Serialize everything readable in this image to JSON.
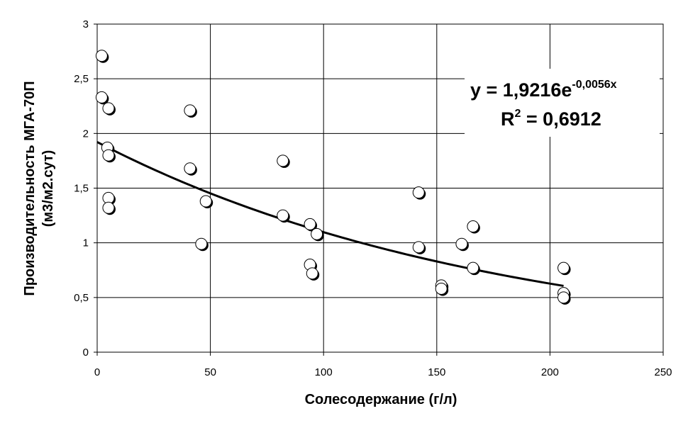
{
  "chart_data": {
    "type": "scatter",
    "xlabel": "Солесодержание (г/л)",
    "ylabel_line1": "Производительность МГА-70П",
    "ylabel_line2": "(м3/м2.сут)",
    "xlim": [
      0,
      250
    ],
    "ylim": [
      0,
      3
    ],
    "x_ticks": [
      0,
      50,
      100,
      150,
      200,
      250
    ],
    "y_ticks": [
      0,
      0.5,
      1,
      1.5,
      2,
      2.5,
      3
    ],
    "x_tick_labels": [
      "0",
      "50",
      "100",
      "150",
      "200",
      "250"
    ],
    "y_tick_labels": [
      "0",
      "0,5",
      "1",
      "1,5",
      "2",
      "2,5",
      "3"
    ],
    "grid": true,
    "legend": "none",
    "points": [
      {
        "x": 2,
        "y": 2.71
      },
      {
        "x": 2,
        "y": 2.33
      },
      {
        "x": 5,
        "y": 2.23
      },
      {
        "x": 4.5,
        "y": 1.87
      },
      {
        "x": 5,
        "y": 1.8
      },
      {
        "x": 5,
        "y": 1.41
      },
      {
        "x": 5,
        "y": 1.32
      },
      {
        "x": 41,
        "y": 2.21
      },
      {
        "x": 41,
        "y": 1.68
      },
      {
        "x": 48,
        "y": 1.38
      },
      {
        "x": 46,
        "y": 0.99
      },
      {
        "x": 82,
        "y": 1.75
      },
      {
        "x": 82,
        "y": 1.25
      },
      {
        "x": 94,
        "y": 1.17
      },
      {
        "x": 97,
        "y": 1.08
      },
      {
        "x": 94,
        "y": 0.8
      },
      {
        "x": 95,
        "y": 0.72
      },
      {
        "x": 142,
        "y": 1.46
      },
      {
        "x": 142,
        "y": 0.96
      },
      {
        "x": 152,
        "y": 0.61
      },
      {
        "x": 152,
        "y": 0.58
      },
      {
        "x": 161,
        "y": 0.99
      },
      {
        "x": 166,
        "y": 1.15
      },
      {
        "x": 166,
        "y": 0.77
      },
      {
        "x": 206,
        "y": 0.77
      },
      {
        "x": 206,
        "y": 0.54
      },
      {
        "x": 206,
        "y": 0.5
      }
    ],
    "trendline": {
      "type": "exponential",
      "a": 1.9216,
      "b": -0.0056,
      "x_range": [
        0,
        206
      ],
      "equation_main": "y = 1,9216e",
      "equation_exponent": "-0,0056x",
      "r2_main": "R",
      "r2_sup": "2",
      "r2_value": " = 0,6912"
    },
    "colors": {
      "marker_fill": "#ffffff",
      "marker_stroke": "#000000",
      "marker_shadow": "#000000",
      "trendline": "#000000",
      "grid": "#000000"
    }
  }
}
